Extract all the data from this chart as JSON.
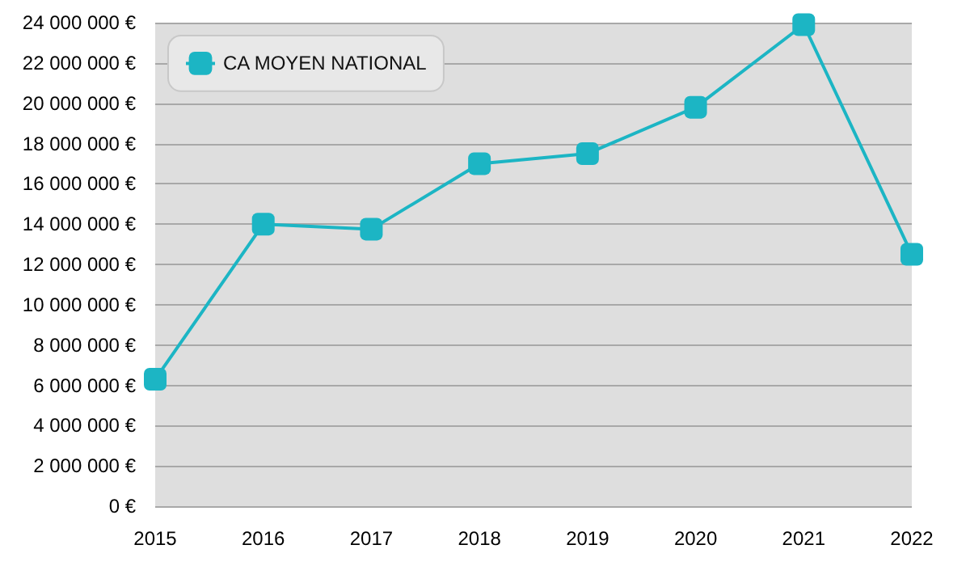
{
  "chart_data": {
    "type": "line",
    "categories": [
      "2015",
      "2016",
      "2017",
      "2018",
      "2019",
      "2020",
      "2021",
      "2022"
    ],
    "series": [
      {
        "name": "CA MOYEN NATIONAL",
        "color": "#1cb5c4",
        "values": [
          6300000,
          14000000,
          13750000,
          17000000,
          17500000,
          19800000,
          23900000,
          12500000
        ]
      }
    ],
    "ylim": [
      0,
      24000000
    ],
    "yticks": [
      {
        "value": 0,
        "label": "0 €"
      },
      {
        "value": 2000000,
        "label": "2 000 000 €"
      },
      {
        "value": 4000000,
        "label": "4 000 000 €"
      },
      {
        "value": 6000000,
        "label": "6 000 000 €"
      },
      {
        "value": 8000000,
        "label": "8 000 000 €"
      },
      {
        "value": 10000000,
        "label": "10 000 000 €"
      },
      {
        "value": 12000000,
        "label": "12 000 000 €"
      },
      {
        "value": 14000000,
        "label": "14 000 000 €"
      },
      {
        "value": 16000000,
        "label": "16 000 000 €"
      },
      {
        "value": 18000000,
        "label": "18 000 000 €"
      },
      {
        "value": 20000000,
        "label": "20 000 000 €"
      },
      {
        "value": 22000000,
        "label": "22 000 000 €"
      },
      {
        "value": 24000000,
        "label": "24 000 000 €"
      }
    ],
    "grid": "y",
    "legend": "top left",
    "marker": "square",
    "line_style": "solid"
  }
}
